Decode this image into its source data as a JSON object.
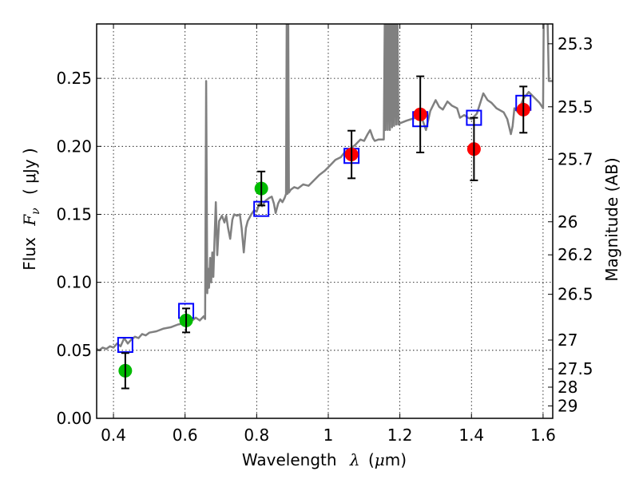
{
  "chart_data": {
    "type": "scatter",
    "title": "",
    "xlabel": "Wavelength  λ (μm)",
    "ylabel": "Flux  Fν  ( μJy )",
    "ylabel_parts": {
      "word": "Flux",
      "symbol": "F",
      "subscript": "ν",
      "unit": "( μJy )"
    },
    "xlabel_parts": {
      "word": "Wavelength",
      "symbol": "λ",
      "unit_open": "(",
      "unit_mu": "μ",
      "unit_rest": "m)"
    },
    "y2label": "Magnitude (AB)",
    "xlim": [
      0.353,
      1.627
    ],
    "ylim": [
      0.0,
      0.29
    ],
    "grid": true,
    "xticks": [
      0.4,
      0.6,
      0.8,
      1.0,
      1.2,
      1.4,
      1.6
    ],
    "xtick_labels": [
      "0.4",
      "0.6",
      "0.8",
      "1",
      "1.2",
      "1.4",
      "1.6"
    ],
    "yticks": [
      0.0,
      0.05,
      0.1,
      0.15,
      0.2,
      0.25
    ],
    "ytick_labels": [
      "0.00",
      "0.05",
      "0.10",
      "0.15",
      "0.20",
      "0.25"
    ],
    "y2_ticks_mag": [
      25.3,
      25.5,
      25.7,
      26,
      26.2,
      26.5,
      27,
      27.5,
      28,
      29
    ],
    "y2_tick_labels": [
      "25.3",
      "25.5",
      "25.7",
      "26",
      "26.2",
      "26.5",
      "27",
      "27.5",
      "28",
      "29"
    ],
    "y2_zeropoint": 23.9,
    "colors": {
      "spectrum": "#808080",
      "model": "#0000ff",
      "optical": "#00bb00",
      "nir": "#ff0000",
      "errorbar": "#000000"
    },
    "series": [
      {
        "name": "template spectrum",
        "kind": "line",
        "x": [
          0.353,
          0.36,
          0.37,
          0.38,
          0.39,
          0.4,
          0.41,
          0.42,
          0.43,
          0.44,
          0.45,
          0.46,
          0.47,
          0.48,
          0.49,
          0.5,
          0.52,
          0.54,
          0.56,
          0.58,
          0.6,
          0.62,
          0.63,
          0.641,
          0.652,
          0.656,
          0.659,
          0.662,
          0.664,
          0.667,
          0.67,
          0.673,
          0.676,
          0.679,
          0.682,
          0.686,
          0.69,
          0.695,
          0.703,
          0.71,
          0.715,
          0.72,
          0.726,
          0.732,
          0.737,
          0.745,
          0.753,
          0.758,
          0.764,
          0.77,
          0.775,
          0.785,
          0.793,
          0.8,
          0.808,
          0.815,
          0.825,
          0.835,
          0.842,
          0.848,
          0.853,
          0.86,
          0.866,
          0.872,
          0.878,
          0.882,
          0.884,
          0.886,
          0.888,
          0.89,
          0.895,
          0.905,
          0.915,
          0.93,
          0.945,
          0.96,
          0.975,
          0.99,
          1.005,
          1.02,
          1.035,
          1.047,
          1.06,
          1.075,
          1.09,
          1.1,
          1.11,
          1.117,
          1.125,
          1.13,
          1.14,
          1.155,
          1.158,
          1.16,
          1.163,
          1.166,
          1.169,
          1.172,
          1.175,
          1.178,
          1.181,
          1.184,
          1.187,
          1.19,
          1.193,
          1.196,
          1.2,
          1.22,
          1.244,
          1.26,
          1.273,
          1.285,
          1.3,
          1.31,
          1.32,
          1.333,
          1.345,
          1.36,
          1.368,
          1.38,
          1.39,
          1.4,
          1.415,
          1.433,
          1.445,
          1.456,
          1.47,
          1.49,
          1.5,
          1.51,
          1.515,
          1.52,
          1.53,
          1.545,
          1.56,
          1.575,
          1.59,
          1.6,
          1.602,
          1.606,
          1.612,
          1.616,
          1.62,
          1.627
        ],
        "y": [
          0.051,
          0.05,
          0.052,
          0.051,
          0.053,
          0.052,
          0.055,
          0.053,
          0.059,
          0.055,
          0.058,
          0.06,
          0.059,
          0.062,
          0.061,
          0.063,
          0.064,
          0.066,
          0.067,
          0.069,
          0.07,
          0.072,
          0.074,
          0.072,
          0.075,
          0.073,
          0.248,
          0.092,
          0.11,
          0.096,
          0.118,
          0.1,
          0.122,
          0.104,
          0.13,
          0.159,
          0.12,
          0.145,
          0.149,
          0.144,
          0.149,
          0.14,
          0.132,
          0.146,
          0.15,
          0.149,
          0.15,
          0.14,
          0.122,
          0.14,
          0.145,
          0.15,
          0.153,
          0.152,
          0.158,
          0.156,
          0.16,
          0.162,
          0.163,
          0.158,
          0.151,
          0.158,
          0.161,
          0.159,
          0.162,
          0.165,
          0.3,
          0.165,
          0.3,
          0.166,
          0.168,
          0.17,
          0.169,
          0.172,
          0.171,
          0.175,
          0.179,
          0.182,
          0.186,
          0.19,
          0.192,
          0.196,
          0.198,
          0.201,
          0.205,
          0.204,
          0.209,
          0.212,
          0.206,
          0.204,
          0.205,
          0.205,
          0.3,
          0.212,
          0.3,
          0.212,
          0.3,
          0.212,
          0.3,
          0.214,
          0.3,
          0.215,
          0.3,
          0.216,
          0.3,
          0.216,
          0.217,
          0.219,
          0.221,
          0.222,
          0.212,
          0.226,
          0.234,
          0.229,
          0.227,
          0.233,
          0.23,
          0.228,
          0.221,
          0.223,
          0.221,
          0.22,
          0.224,
          0.239,
          0.234,
          0.232,
          0.228,
          0.225,
          0.22,
          0.209,
          0.215,
          0.228,
          0.225,
          0.235,
          0.24,
          0.236,
          0.232,
          0.228,
          0.3,
          0.3,
          0.3,
          0.248,
          0.248,
          0.248
        ]
      },
      {
        "name": "model photometry",
        "kind": "square",
        "x": [
          0.433,
          0.603,
          0.813,
          1.065,
          1.257,
          1.407,
          1.545
        ],
        "y": [
          0.054,
          0.079,
          0.154,
          0.193,
          0.22,
          0.221,
          0.232
        ]
      },
      {
        "name": "optical photometry",
        "kind": "circle",
        "x": [
          0.433,
          0.603,
          0.813
        ],
        "y": [
          0.035,
          0.072,
          0.169
        ],
        "yerr": [
          0.013,
          0.0088,
          0.0125
        ]
      },
      {
        "name": "near-IR photometry",
        "kind": "circle",
        "x": [
          1.065,
          1.257,
          1.407,
          1.545
        ],
        "y": [
          0.194,
          0.2235,
          0.198,
          0.227
        ],
        "yerr": [
          0.0175,
          0.028,
          0.023,
          0.017
        ]
      }
    ]
  }
}
